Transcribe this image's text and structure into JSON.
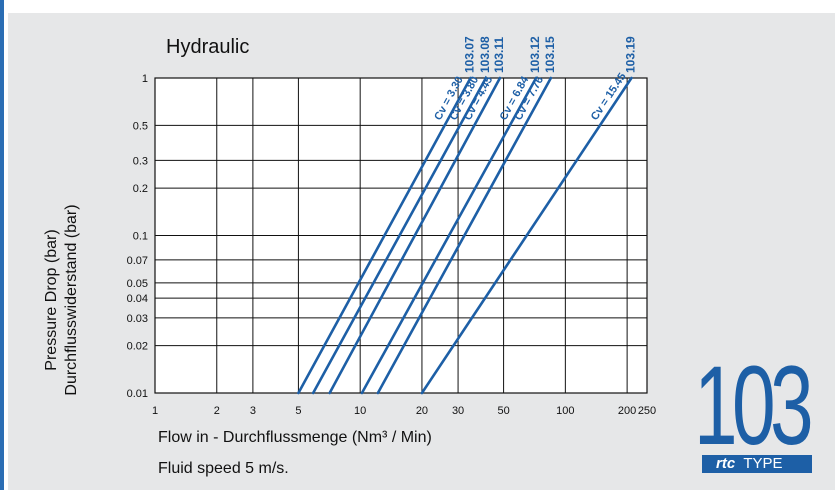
{
  "chart_data": {
    "type": "line",
    "title": "Hydraulic",
    "ylabel": [
      "Pressure Drop (bar)",
      "Durchflusswiderstand (bar)"
    ],
    "xlabel": "Flow in - Durchflussmenge (Nm³ / Min)",
    "note": "Fluid speed 5 m/s.",
    "x_scale": "log",
    "y_scale": "log",
    "xlim": [
      1,
      250
    ],
    "ylim": [
      0.01,
      1
    ],
    "x_ticks": [
      1,
      2,
      3,
      5,
      10,
      20,
      30,
      50,
      100,
      200,
      250
    ],
    "x_tick_labels": [
      "1",
      "2",
      "3",
      "5",
      "10",
      "20",
      "30",
      "50",
      "100",
      "200",
      "250"
    ],
    "y_ticks": [
      0.01,
      0.02,
      0.03,
      0.04,
      0.05,
      0.07,
      0.1,
      0.2,
      0.3,
      0.5,
      1
    ],
    "y_tick_labels": [
      "0.01",
      "0.02",
      "0.03",
      "0.04",
      "0.05",
      "0.07",
      "0.1",
      "0.2",
      "0.3",
      "0.5",
      "1"
    ],
    "grid": true,
    "series": [
      {
        "name": "103.07",
        "cv": "Cv = 3.30",
        "x": [
          5.0,
          34.5
        ],
        "y": [
          0.01,
          1
        ]
      },
      {
        "name": "103.08",
        "cv": "Cv = 3.80",
        "x": [
          5.9,
          41
        ],
        "y": [
          0.01,
          1
        ]
      },
      {
        "name": "103.11",
        "cv": "Cv = 4.45",
        "x": [
          7.1,
          48
        ],
        "y": [
          0.01,
          1
        ]
      },
      {
        "name": "103.12",
        "cv": "Cv = 6.84",
        "x": [
          10.2,
          72
        ],
        "y": [
          0.01,
          1
        ]
      },
      {
        "name": "103.15",
        "cv": "Cv = 7.76",
        "x": [
          12.2,
          85
        ],
        "y": [
          0.01,
          1
        ]
      },
      {
        "name": "103.19",
        "cv": "Cv = 15.45",
        "x": [
          20,
          210
        ],
        "y": [
          0.01,
          1
        ]
      }
    ]
  },
  "badge": {
    "number": "103",
    "brand": "rtc",
    "type": "TYPE"
  },
  "colors": {
    "panel": "#e6e7e8",
    "accent": "#1d5fa6"
  }
}
